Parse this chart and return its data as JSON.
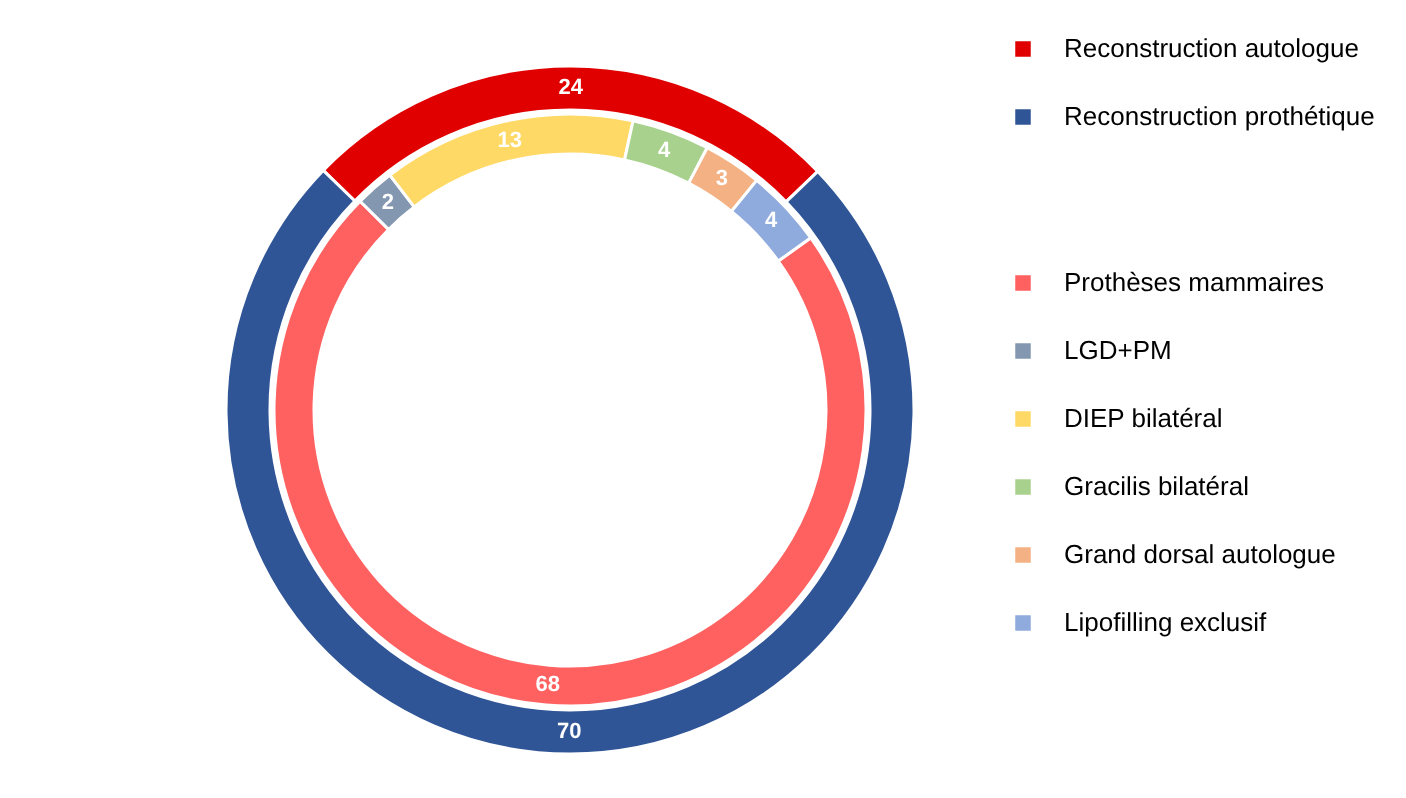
{
  "chart_data": {
    "type": "donut",
    "data_labels": true,
    "legend": "right",
    "categories": [
      "Reconstruction autologue",
      "Reconstruction prothétique",
      "Prothèses mammaires",
      "LGD+PM",
      "DIEP bilatéral",
      "Gracilis bilatéral",
      "Grand dorsal autologue",
      "Lipofilling exclusif"
    ],
    "colors": [
      "#e00000",
      "#2f5597",
      "#ff6161",
      "#8497b0",
      "#ffd966",
      "#a9d18e",
      "#f4b183",
      "#8faadc"
    ],
    "series": [
      {
        "values": [
          24,
          70,
          null,
          null,
          null,
          null,
          null,
          null
        ]
      },
      {
        "values": [
          null,
          null,
          68,
          2,
          13,
          4,
          3,
          4
        ]
      }
    ]
  }
}
